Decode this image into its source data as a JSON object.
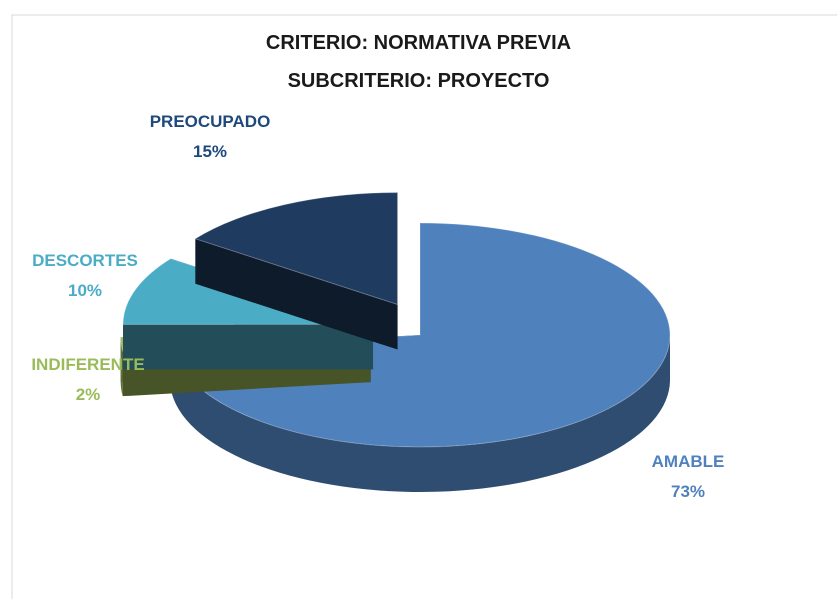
{
  "chart_data": {
    "type": "pie3d",
    "title": "CRITERIO: NORMATIVA PREVIA",
    "subtitle": "SUBCRITERIO: PROYECTO",
    "categories": [
      "AMABLE",
      "INDIFERENTE",
      "DESCORTES",
      "PREOCUPADO"
    ],
    "values": [
      73,
      2,
      10,
      15
    ],
    "value_labels": [
      "73%",
      "2%",
      "10%",
      "15%"
    ],
    "colors": [
      "#4f81bd",
      "#9bbb59",
      "#4bacc6",
      "#1f3b60"
    ]
  }
}
